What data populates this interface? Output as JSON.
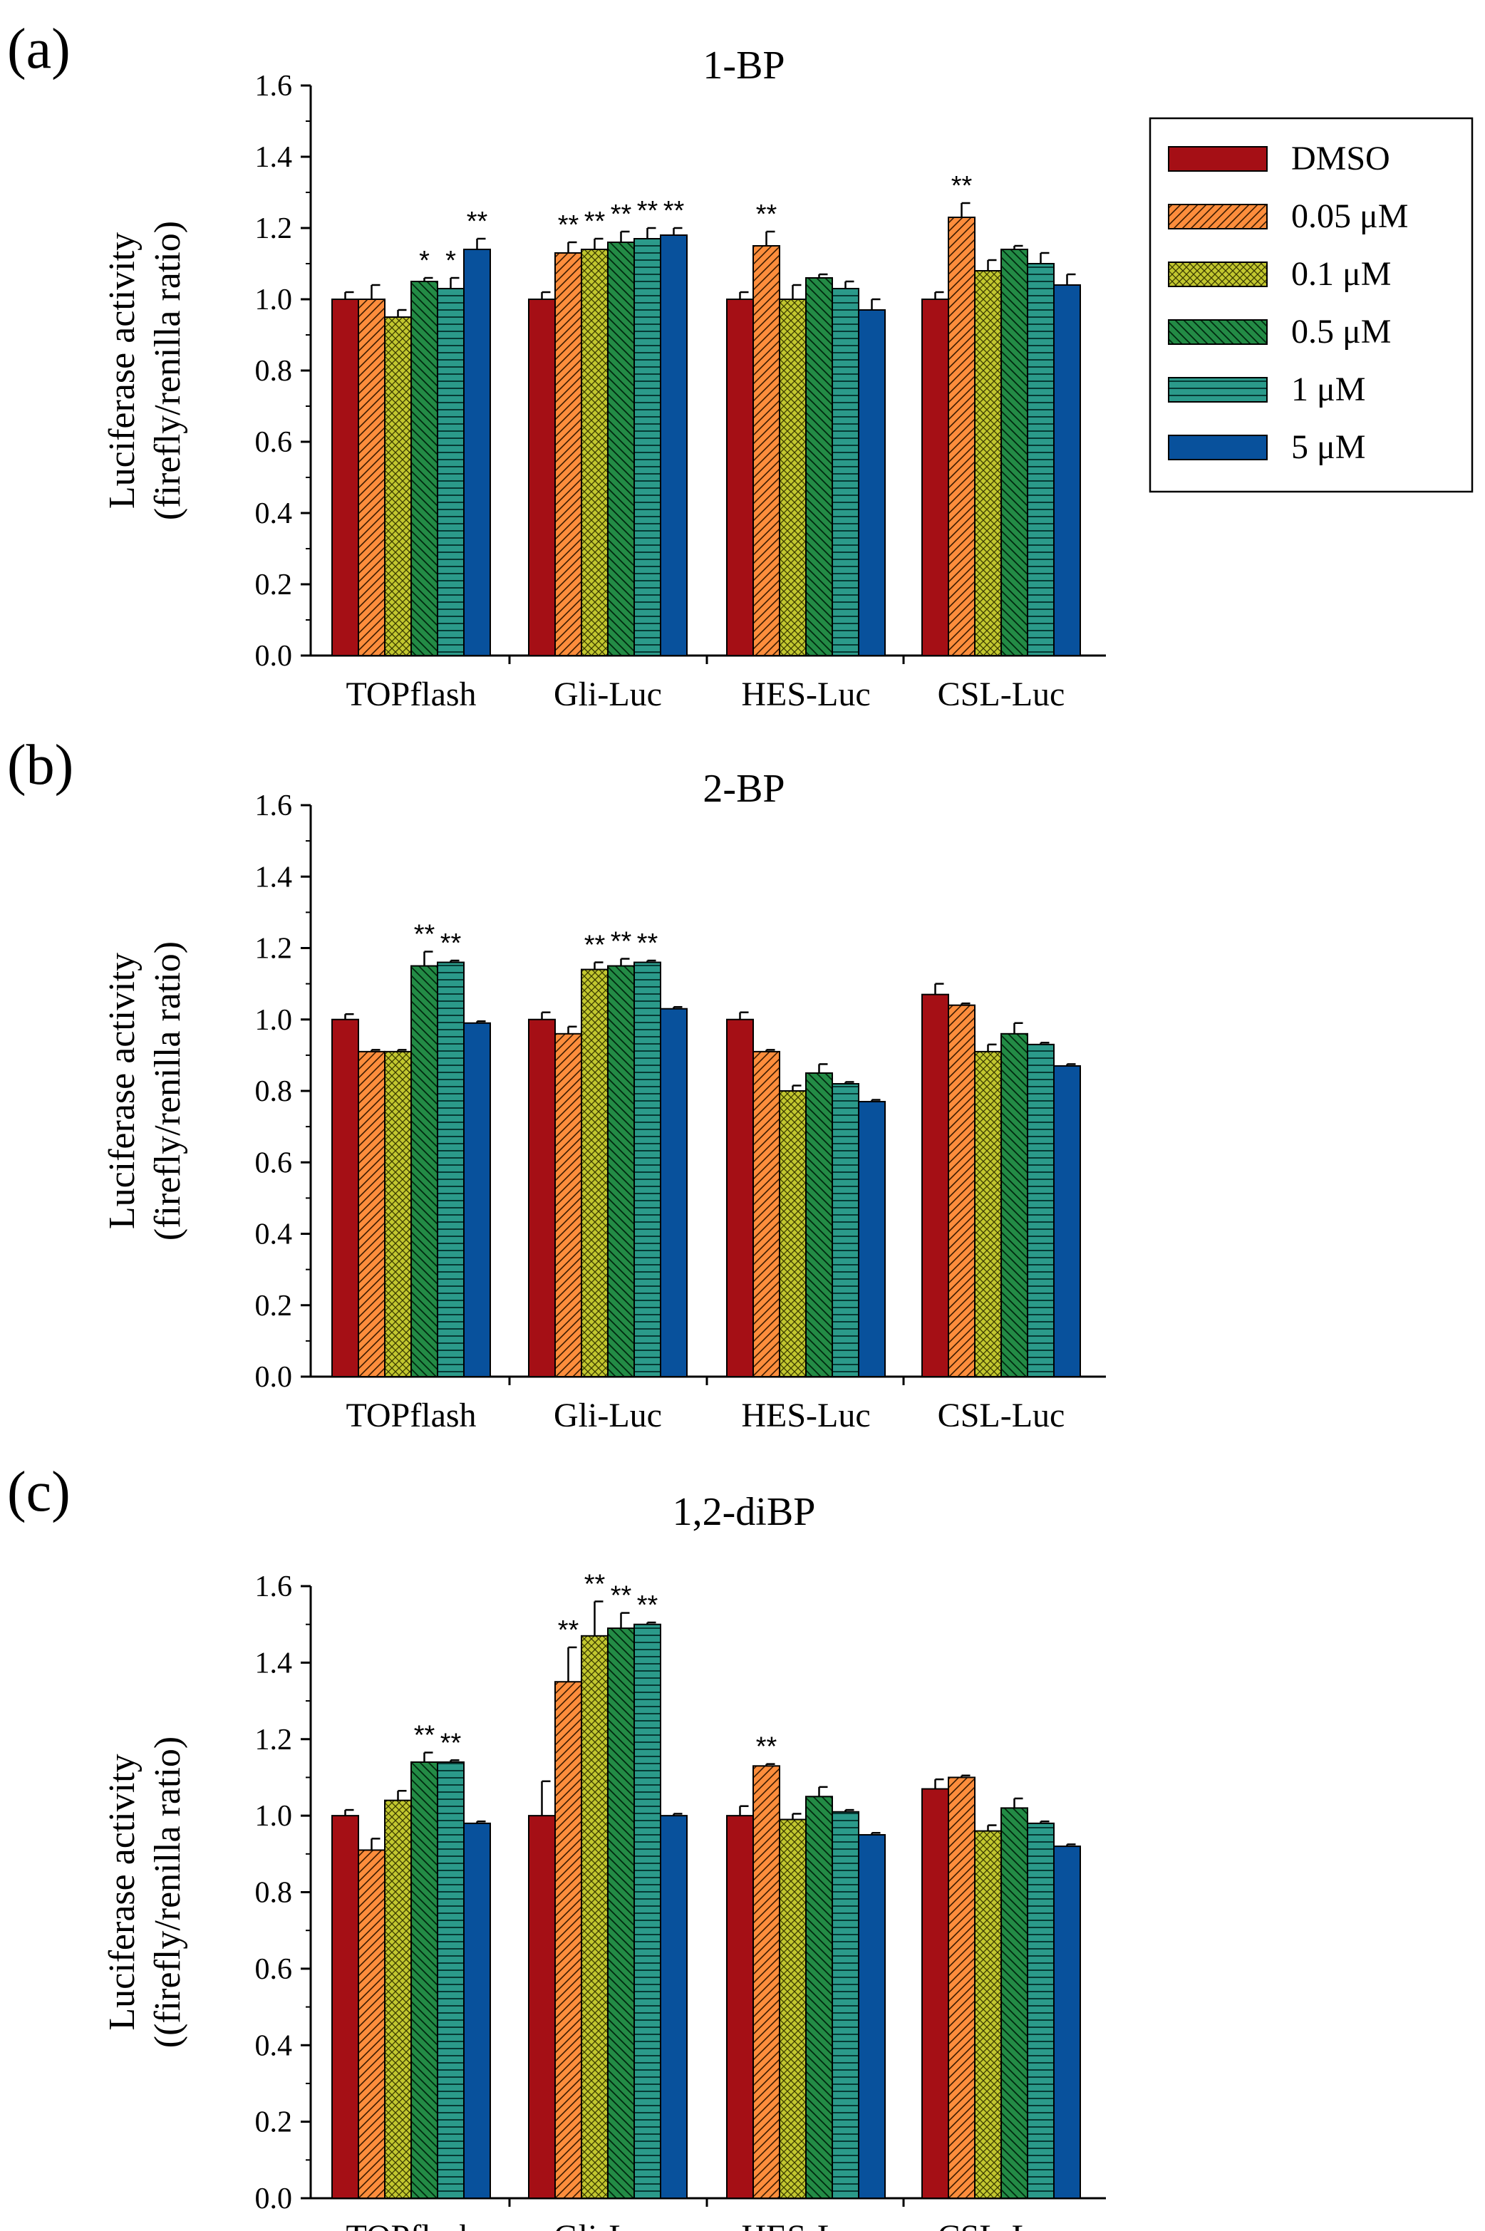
{
  "legend": {
    "series": [
      {
        "key": "dmso",
        "name": "DMSO",
        "color": "#a50f15",
        "pattern": "solid"
      },
      {
        "key": "c005",
        "name": "0.05 μM",
        "color": "#fd8d3c",
        "pattern": "diag"
      },
      {
        "key": "c01",
        "name": "0.1 μM",
        "color": "#c2c72f",
        "pattern": "cross"
      },
      {
        "key": "c05",
        "name": "0.5 μM",
        "color": "#238b45",
        "pattern": "diagrev"
      },
      {
        "key": "c1",
        "name": "1 μM",
        "color": "#2b9a8a",
        "pattern": "horiz"
      },
      {
        "key": "c5",
        "name": "5 μM",
        "color": "#08519c",
        "pattern": "solid"
      }
    ]
  },
  "chart_data": [
    {
      "type": "bar",
      "panel_label": "(a)",
      "title": "1-BP",
      "ylabel_line1": "Luciferase activity",
      "ylabel_line2": "(firefly/renilla ratio)",
      "ylim": [
        0,
        1.6
      ],
      "yticks": [
        "0.0",
        "0.2",
        "0.4",
        "0.6",
        "0.8",
        "1.0",
        "1.2",
        "1.4",
        "1.6"
      ],
      "categories": [
        "TOPflash",
        "Gli-Luc",
        "HES-Luc",
        "CSL-Luc"
      ],
      "series": [
        {
          "name": "DMSO",
          "values": [
            1.0,
            1.0,
            1.0,
            1.0
          ],
          "errors": [
            0.02,
            0.02,
            0.02,
            0.02
          ]
        },
        {
          "name": "0.05 μM",
          "values": [
            1.0,
            1.13,
            1.15,
            1.23
          ],
          "errors": [
            0.04,
            0.03,
            0.04,
            0.04
          ]
        },
        {
          "name": "0.1 μM",
          "values": [
            0.95,
            1.14,
            1.0,
            1.08
          ],
          "errors": [
            0.02,
            0.03,
            0.04,
            0.03
          ]
        },
        {
          "name": "0.5 μM",
          "values": [
            1.05,
            1.16,
            1.06,
            1.14
          ],
          "errors": [
            0.01,
            0.03,
            0.01,
            0.01
          ]
        },
        {
          "name": "1 μM",
          "values": [
            1.03,
            1.17,
            1.03,
            1.1
          ],
          "errors": [
            0.03,
            0.03,
            0.02,
            0.03
          ]
        },
        {
          "name": "5 μM",
          "values": [
            1.14,
            1.18,
            0.97,
            1.04
          ],
          "errors": [
            0.03,
            0.02,
            0.03,
            0.03
          ]
        }
      ],
      "annotations": [
        [
          "",
          "",
          "",
          "*",
          "*",
          "**"
        ],
        [
          "",
          "**",
          "**",
          "**",
          "**",
          "**"
        ],
        [
          "",
          "**",
          "",
          "",
          "",
          ""
        ],
        [
          "",
          "**",
          "",
          "",
          "",
          ""
        ]
      ]
    },
    {
      "type": "bar",
      "panel_label": "(b)",
      "title": "2-BP",
      "ylabel_line1": "Luciferase activity",
      "ylabel_line2": "(firefly/renilla ratio)",
      "ylim": [
        0,
        1.6
      ],
      "yticks": [
        "0.0",
        "0.2",
        "0.4",
        "0.6",
        "0.8",
        "1.0",
        "1.2",
        "1.4",
        "1.6"
      ],
      "categories": [
        "TOPflash",
        "Gli-Luc",
        "HES-Luc",
        "CSL-Luc"
      ],
      "series": [
        {
          "name": "DMSO",
          "values": [
            1.0,
            1.0,
            1.0,
            1.07
          ],
          "errors": [
            0.015,
            0.02,
            0.02,
            0.03
          ]
        },
        {
          "name": "0.05 μM",
          "values": [
            0.91,
            0.96,
            0.91,
            1.04
          ],
          "errors": [
            0.005,
            0.02,
            0.005,
            0.005
          ]
        },
        {
          "name": "0.1 μM",
          "values": [
            0.91,
            1.14,
            0.8,
            0.91
          ],
          "errors": [
            0.005,
            0.02,
            0.015,
            0.02
          ]
        },
        {
          "name": "0.5 μM",
          "values": [
            1.15,
            1.15,
            0.85,
            0.96
          ],
          "errors": [
            0.04,
            0.02,
            0.025,
            0.03
          ]
        },
        {
          "name": "1 μM",
          "values": [
            1.16,
            1.16,
            0.82,
            0.93
          ],
          "errors": [
            0.005,
            0.005,
            0.005,
            0.005
          ]
        },
        {
          "name": "5 μM",
          "values": [
            0.99,
            1.03,
            0.77,
            0.87
          ],
          "errors": [
            0.005,
            0.005,
            0.005,
            0.005
          ]
        }
      ],
      "annotations": [
        [
          "",
          "",
          "",
          "**",
          "**",
          ""
        ],
        [
          "",
          "",
          "**",
          "**",
          "**",
          ""
        ],
        [
          "",
          "",
          "",
          "",
          "",
          ""
        ],
        [
          "",
          "",
          "",
          "",
          "",
          ""
        ]
      ]
    },
    {
      "type": "bar",
      "panel_label": "(c)",
      "title": "1,2-diBP",
      "ylabel_line1": "Luciferase activity",
      "ylabel_line2": "((firefly/renilla ratio)",
      "ylim": [
        0,
        1.6
      ],
      "yticks": [
        "0.0",
        "0.2",
        "0.4",
        "0.6",
        "0.8",
        "1.0",
        "1.2",
        "1.4",
        "1.6"
      ],
      "categories": [
        "TOPflash",
        "Gli-Luc",
        "HES-Luc",
        "CSL-Luc"
      ],
      "series": [
        {
          "name": "DMSO",
          "values": [
            1.0,
            1.0,
            1.0,
            1.07
          ],
          "errors": [
            0.015,
            0.09,
            0.025,
            0.025
          ]
        },
        {
          "name": "0.05 μM",
          "values": [
            0.91,
            1.35,
            1.13,
            1.1
          ],
          "errors": [
            0.03,
            0.09,
            0.005,
            0.005
          ]
        },
        {
          "name": "0.1 μM",
          "values": [
            1.04,
            1.47,
            0.99,
            0.96
          ],
          "errors": [
            0.025,
            0.09,
            0.015,
            0.015
          ]
        },
        {
          "name": "0.5 μM",
          "values": [
            1.14,
            1.49,
            1.05,
            1.02
          ],
          "errors": [
            0.025,
            0.04,
            0.025,
            0.025
          ]
        },
        {
          "name": "1 μM",
          "values": [
            1.14,
            1.5,
            1.01,
            0.98
          ],
          "errors": [
            0.005,
            0.005,
            0.005,
            0.005
          ]
        },
        {
          "name": "5 μM",
          "values": [
            0.98,
            1.0,
            0.95,
            0.92
          ],
          "errors": [
            0.005,
            0.005,
            0.005,
            0.005
          ]
        }
      ],
      "annotations": [
        [
          "",
          "",
          "",
          "**",
          "**",
          ""
        ],
        [
          "",
          "**",
          "**",
          "**",
          "**",
          ""
        ],
        [
          "",
          "**",
          "",
          "",
          "",
          ""
        ],
        [
          "",
          "",
          "",
          "",
          "",
          ""
        ]
      ]
    }
  ]
}
